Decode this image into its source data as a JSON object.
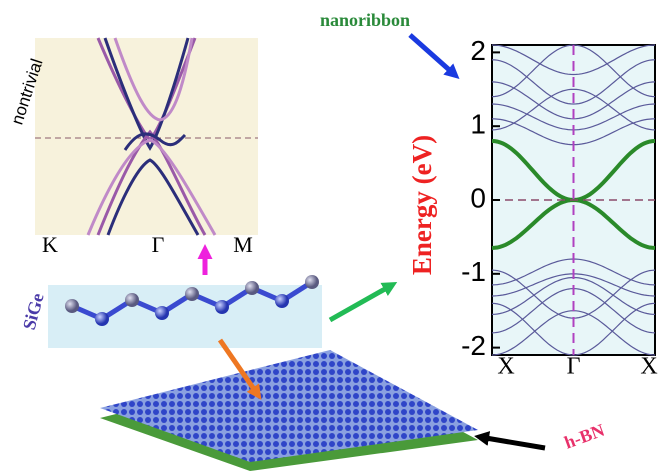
{
  "nontrivial_panel": {
    "label": "nontrivial",
    "k_labels": [
      "K",
      "Γ",
      "M"
    ]
  },
  "chain": {
    "label": "SiGe"
  },
  "band_panel": {
    "title": "nanoribbon",
    "y_label": "Energy (eV)",
    "yticks": [
      2,
      1,
      0,
      -1,
      -2
    ],
    "ylim": [
      -2.1,
      2.1
    ],
    "k_labels": [
      "X",
      "Γ",
      "X"
    ]
  },
  "substrate": {
    "label": "h-BN"
  }
}
